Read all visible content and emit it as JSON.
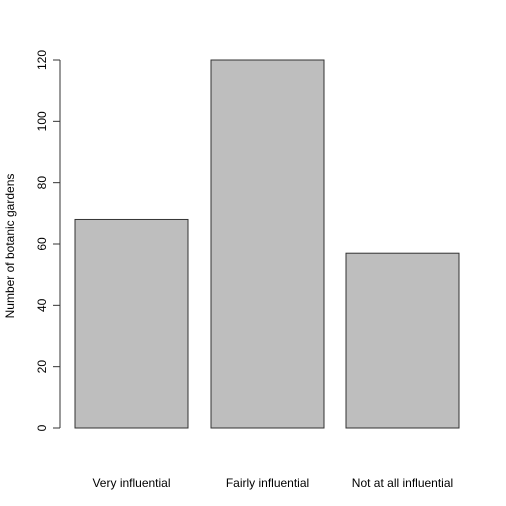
{
  "chart_data": {
    "type": "bar",
    "categories": [
      "Very influential",
      "Fairly influential",
      "Not at all influential"
    ],
    "values": [
      68,
      120,
      57
    ],
    "title": "",
    "xlabel": "",
    "ylabel": "Number of botanic gardens",
    "ylim": [
      0,
      120
    ],
    "yticks": [
      0,
      20,
      40,
      60,
      80,
      100,
      120
    ],
    "grid": false,
    "colors": {
      "bar_fill": "#bebebe",
      "bar_stroke": "#333333"
    }
  }
}
